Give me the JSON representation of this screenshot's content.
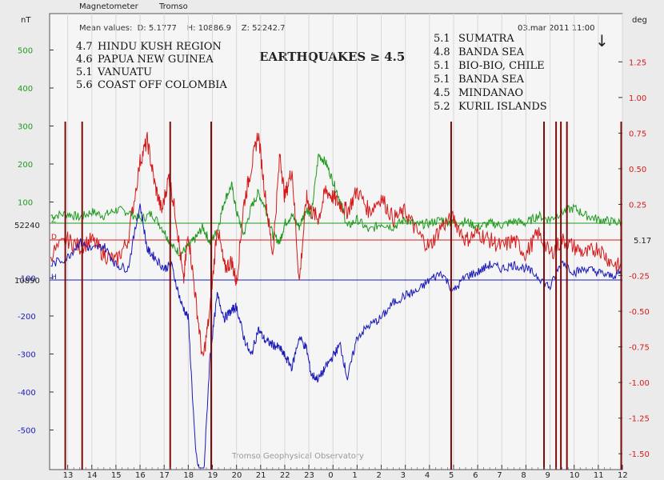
{
  "header": {
    "app": "Magnetometer",
    "station": "Tromso",
    "mean_values": "Mean values:  D: 5.1777    H: 10886.9    Z: 52242.7",
    "timestamp": "03.mar 2011 11:00",
    "arrow": "↓",
    "title": "EARTHQUAKES ≥ 4.5",
    "footer": "Tromso Geophysical Observatory"
  },
  "left_axis": {
    "unit": "nT",
    "ticks": [
      "500",
      "400",
      "300",
      "200",
      "100",
      "-100",
      "-200",
      "-300",
      "-400",
      "-500"
    ],
    "z_ref": "52240",
    "h_ref": "10890"
  },
  "right_axis": {
    "unit": "deg",
    "ticks": [
      "1.25",
      "1.00",
      "0.75",
      "0.50",
      "0.25",
      "-0.25",
      "-0.50",
      "-0.75",
      "-1.00",
      "-1.25",
      "-1.50"
    ],
    "d_ref": "5.17"
  },
  "x_axis": {
    "ticks": [
      "13",
      "14",
      "15",
      "16",
      "17",
      "18",
      "19",
      "20",
      "21",
      "22",
      "23",
      "0",
      "1",
      "2",
      "3",
      "4",
      "5",
      "6",
      "7",
      "8",
      "9",
      "10",
      "11",
      "12"
    ]
  },
  "events_left": [
    {
      "mag": "4.7",
      "place": "HINDU KUSH REGION"
    },
    {
      "mag": "4.6",
      "place": "PAPUA NEW GUINEA"
    },
    {
      "mag": "5.1",
      "place": "VANUATU"
    },
    {
      "mag": "5.6",
      "place": "COAST OFF COLOMBIA"
    }
  ],
  "events_right": [
    {
      "mag": "5.1",
      "place": "SUMATRA"
    },
    {
      "mag": "4.8",
      "place": "BANDA SEA"
    },
    {
      "mag": "5.1",
      "place": "BIO-BIO, CHILE"
    },
    {
      "mag": "5.1",
      "place": "BANDA SEA"
    },
    {
      "mag": "4.5",
      "place": "MINDANAO"
    },
    {
      "mag": "5.2",
      "place": "KURIL ISLANDS"
    }
  ],
  "chart_data": {
    "type": "line",
    "xlabel": "",
    "x_hour_ticks": [
      "13",
      "14",
      "15",
      "16",
      "17",
      "18",
      "19",
      "20",
      "21",
      "22",
      "23",
      "0",
      "1",
      "2",
      "3",
      "4",
      "5",
      "6",
      "7",
      "8",
      "9",
      "10",
      "11",
      "12"
    ],
    "x_range_hours": [
      12.25,
      36.0
    ],
    "left_ylim": [
      -600,
      600
    ],
    "right_ylim": [
      -1.6,
      1.6
    ],
    "earthquake_markers_hours": [
      12.9,
      13.6,
      17.25,
      18.95,
      28.9,
      32.75,
      33.25,
      33.45,
      33.7,
      35.95
    ],
    "colors": {
      "Z": "#1e9a1e",
      "D": "#d41a1a",
      "H": "#1a1ab8",
      "markers": "#7a0c0c"
    },
    "series": [
      {
        "name": "Z",
        "axis": "left",
        "x": [
          12.3,
          13.0,
          13.5,
          14.0,
          14.5,
          15.0,
          15.5,
          16.0,
          16.5,
          17.0,
          17.3,
          17.7,
          18.0,
          18.3,
          18.6,
          18.9,
          19.2,
          19.5,
          19.8,
          20.0,
          20.3,
          20.6,
          20.9,
          21.2,
          21.5,
          21.8,
          22.0,
          22.3,
          22.6,
          22.9,
          23.1,
          23.4,
          23.7,
          24.0,
          24.3,
          24.6,
          25.0,
          25.5,
          26.0,
          26.5,
          27.0,
          27.5,
          28.0,
          28.5,
          29.0,
          29.5,
          30.0,
          30.5,
          31.0,
          31.5,
          32.0,
          32.5,
          33.0,
          33.5,
          34.0,
          34.5,
          35.0,
          35.5,
          36.0
        ],
        "y": [
          20,
          25,
          15,
          30,
          20,
          35,
          30,
          10,
          25,
          -20,
          -60,
          -80,
          -60,
          -40,
          -10,
          -50,
          -20,
          60,
          100,
          30,
          -30,
          40,
          80,
          40,
          -30,
          -50,
          0,
          20,
          -10,
          40,
          20,
          180,
          160,
          110,
          60,
          -10,
          10,
          -20,
          0,
          -10,
          10,
          -5,
          0,
          10,
          0,
          5,
          -10,
          0,
          -5,
          5,
          0,
          20,
          10,
          30,
          40,
          20,
          10,
          5,
          0
        ]
      },
      {
        "name": "D",
        "axis": "right",
        "x": [
          12.3,
          13.0,
          13.5,
          14.0,
          14.5,
          15.0,
          15.5,
          16.0,
          16.3,
          16.6,
          16.9,
          17.2,
          17.5,
          17.8,
          18.0,
          18.3,
          18.6,
          18.9,
          19.2,
          19.5,
          19.8,
          20.0,
          20.3,
          20.6,
          20.9,
          21.2,
          21.5,
          21.8,
          22.0,
          22.3,
          22.6,
          22.9,
          23.1,
          23.4,
          23.7,
          24.0,
          24.3,
          24.6,
          25.0,
          25.5,
          26.0,
          26.5,
          27.0,
          27.5,
          28.0,
          28.5,
          29.0,
          29.5,
          30.0,
          30.5,
          31.0,
          31.5,
          32.0,
          32.5,
          33.0,
          33.5,
          34.0,
          34.5,
          35.0,
          35.5,
          36.0
        ],
        "y": [
          -0.1,
          0.0,
          -0.05,
          0.0,
          -0.1,
          -0.15,
          0.0,
          0.55,
          0.7,
          0.4,
          0.2,
          0.45,
          0.15,
          -0.3,
          0.05,
          -0.4,
          -0.85,
          -0.5,
          0.1,
          -0.2,
          -0.15,
          -0.3,
          0.25,
          0.5,
          0.75,
          0.3,
          -0.1,
          0.6,
          0.3,
          0.5,
          -0.3,
          0.3,
          0.2,
          0.15,
          0.35,
          0.3,
          0.25,
          0.2,
          0.35,
          0.2,
          0.3,
          0.15,
          0.2,
          0.05,
          -0.05,
          0.1,
          0.15,
          0.0,
          0.05,
          0.0,
          -0.05,
          0.0,
          -0.1,
          0.05,
          -0.1,
          0.0,
          -0.05,
          -0.1,
          -0.05,
          -0.15,
          -0.2
        ]
      },
      {
        "name": "H",
        "axis": "left",
        "x": [
          12.3,
          13.0,
          13.5,
          14.0,
          14.5,
          15.0,
          15.5,
          16.0,
          16.3,
          16.6,
          17.0,
          17.3,
          17.7,
          18.0,
          18.3,
          18.6,
          18.9,
          19.2,
          19.5,
          19.8,
          20.0,
          20.3,
          20.6,
          20.9,
          21.2,
          21.5,
          21.8,
          22.0,
          22.3,
          22.6,
          22.9,
          23.1,
          23.4,
          23.7,
          24.0,
          24.3,
          24.6,
          25.0,
          25.5,
          26.0,
          26.5,
          27.0,
          27.5,
          28.0,
          28.5,
          29.0,
          29.5,
          30.0,
          30.5,
          31.0,
          31.5,
          32.0,
          32.5,
          33.0,
          33.5,
          34.0,
          34.5,
          35.0,
          35.5,
          36.0
        ],
        "y": [
          40,
          60,
          100,
          80,
          90,
          40,
          30,
          200,
          80,
          60,
          30,
          40,
          -60,
          -100,
          -450,
          -560,
          -200,
          -40,
          -100,
          -80,
          -70,
          -150,
          -200,
          -130,
          -160,
          -170,
          -180,
          -200,
          -230,
          -150,
          -180,
          -250,
          -260,
          -230,
          -200,
          -170,
          -260,
          -150,
          -120,
          -100,
          -60,
          -40,
          -30,
          0,
          20,
          -30,
          10,
          20,
          40,
          30,
          40,
          30,
          10,
          -20,
          50,
          20,
          30,
          20,
          10,
          20
        ]
      }
    ],
    "reference_lines": [
      {
        "series": "Z",
        "label": "52240",
        "axis": "left",
        "value": 40
      },
      {
        "series": "D",
        "label": "5.17",
        "axis": "right",
        "value": 0.0
      },
      {
        "series": "H",
        "label": "10890",
        "axis": "left",
        "value": 0
      }
    ]
  }
}
